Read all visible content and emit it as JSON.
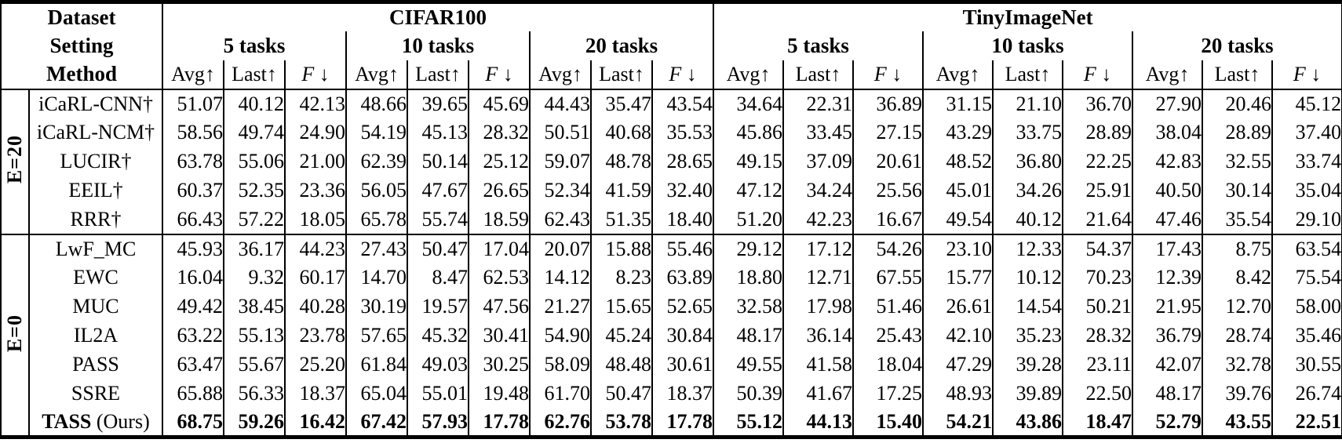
{
  "colors": {
    "text": "#000000",
    "background": "#ffffff",
    "border": "#000000"
  },
  "table": {
    "header": {
      "dataset_label": "Dataset",
      "setting_label": "Setting",
      "method_label": "Method",
      "datasets": [
        "CIFAR100",
        "TinyImageNet"
      ],
      "settings": [
        "5 tasks",
        "10 tasks",
        "20 tasks",
        "5 tasks",
        "10 tasks",
        "20 tasks"
      ],
      "metric_triple": [
        {
          "name": "Avg",
          "arrow": "↑",
          "italic": false,
          "space": false
        },
        {
          "name": "Last",
          "arrow": "↑",
          "italic": false,
          "space": false
        },
        {
          "name": "F",
          "arrow": "↓",
          "italic": true,
          "space": true
        }
      ]
    },
    "groups": [
      {
        "label": "E=20",
        "rows": [
          {
            "method": "iCaRL-CNN†",
            "bold": false,
            "values": [
              "51.07",
              "40.12",
              "42.13",
              "48.66",
              "39.65",
              "45.69",
              "44.43",
              "35.47",
              "43.54",
              "34.64",
              "22.31",
              "36.89",
              "31.15",
              "21.10",
              "36.70",
              "27.90",
              "20.46",
              "45.12"
            ]
          },
          {
            "method": "iCaRL-NCM†",
            "bold": false,
            "values": [
              "58.56",
              "49.74",
              "24.90",
              "54.19",
              "45.13",
              "28.32",
              "50.51",
              "40.68",
              "35.53",
              "45.86",
              "33.45",
              "27.15",
              "43.29",
              "33.75",
              "28.89",
              "38.04",
              "28.89",
              "37.40"
            ]
          },
          {
            "method": "LUCIR†",
            "bold": false,
            "values": [
              "63.78",
              "55.06",
              "21.00",
              "62.39",
              "50.14",
              "25.12",
              "59.07",
              "48.78",
              "28.65",
              "49.15",
              "37.09",
              "20.61",
              "48.52",
              "36.80",
              "22.25",
              "42.83",
              "32.55",
              "33.74"
            ]
          },
          {
            "method": "EEIL†",
            "bold": false,
            "values": [
              "60.37",
              "52.35",
              "23.36",
              "56.05",
              "47.67",
              "26.65",
              "52.34",
              "41.59",
              "32.40",
              "47.12",
              "34.24",
              "25.56",
              "45.01",
              "34.26",
              "25.91",
              "40.50",
              "30.14",
              "35.04"
            ]
          },
          {
            "method": "RRR†",
            "bold": false,
            "values": [
              "66.43",
              "57.22",
              "18.05",
              "65.78",
              "55.74",
              "18.59",
              "62.43",
              "51.35",
              "18.40",
              "51.20",
              "42.23",
              "16.67",
              "49.54",
              "40.12",
              "21.64",
              "47.46",
              "35.54",
              "29.10"
            ]
          }
        ]
      },
      {
        "label": "E=0",
        "rows": [
          {
            "method": "LwF_MC",
            "bold": false,
            "values": [
              "45.93",
              "36.17",
              "44.23",
              "27.43",
              "50.47",
              "17.04",
              "20.07",
              "15.88",
              "55.46",
              "29.12",
              "17.12",
              "54.26",
              "23.10",
              "12.33",
              "54.37",
              "17.43",
              "8.75",
              "63.54"
            ]
          },
          {
            "method": "EWC",
            "bold": false,
            "values": [
              "16.04",
              "9.32",
              "60.17",
              "14.70",
              "8.47",
              "62.53",
              "14.12",
              "8.23",
              "63.89",
              "18.80",
              "12.71",
              "67.55",
              "15.77",
              "10.12",
              "70.23",
              "12.39",
              "8.42",
              "75.54"
            ]
          },
          {
            "method": "MUC",
            "bold": false,
            "values": [
              "49.42",
              "38.45",
              "40.28",
              "30.19",
              "19.57",
              "47.56",
              "21.27",
              "15.65",
              "52.65",
              "32.58",
              "17.98",
              "51.46",
              "26.61",
              "14.54",
              "50.21",
              "21.95",
              "12.70",
              "58.00"
            ]
          },
          {
            "method": "IL2A",
            "bold": false,
            "values": [
              "63.22",
              "55.13",
              "23.78",
              "57.65",
              "45.32",
              "30.41",
              "54.90",
              "45.24",
              "30.84",
              "48.17",
              "36.14",
              "25.43",
              "42.10",
              "35.23",
              "28.32",
              "36.79",
              "28.74",
              "35.46"
            ]
          },
          {
            "method": "PASS",
            "bold": false,
            "values": [
              "63.47",
              "55.67",
              "25.20",
              "61.84",
              "49.03",
              "30.25",
              "58.09",
              "48.48",
              "30.61",
              "49.55",
              "41.58",
              "18.04",
              "47.29",
              "39.28",
              "23.11",
              "42.07",
              "32.78",
              "30.55"
            ]
          },
          {
            "method": "SSRE",
            "bold": false,
            "values": [
              "65.88",
              "56.33",
              "18.37",
              "65.04",
              "55.01",
              "19.48",
              "61.70",
              "50.47",
              "18.37",
              "50.39",
              "41.67",
              "17.25",
              "48.93",
              "39.89",
              "22.50",
              "48.17",
              "39.76",
              "26.74"
            ]
          },
          {
            "method": "TASS",
            "method_suffix": " (Ours)",
            "bold": true,
            "values": [
              "68.75",
              "59.26",
              "16.42",
              "67.42",
              "57.93",
              "17.78",
              "62.76",
              "53.78",
              "17.78",
              "55.12",
              "44.13",
              "15.40",
              "54.21",
              "43.86",
              "18.47",
              "52.79",
              "43.55",
              "22.51"
            ]
          }
        ]
      }
    ],
    "layout": {
      "group_col_width": 36,
      "method_col_width": 170,
      "cifar_col_width": 78,
      "tiny_col_width": 89
    }
  }
}
